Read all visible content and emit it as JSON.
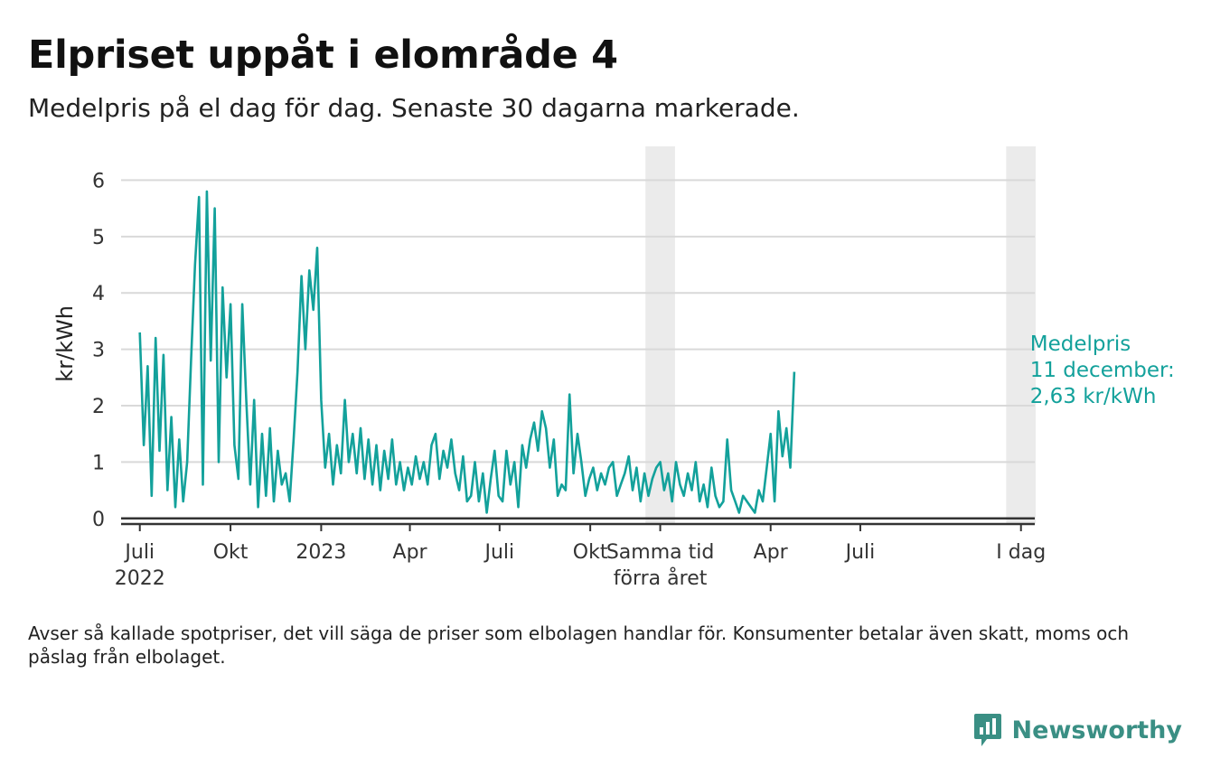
{
  "title": "Elpriset uppåt i elområde 4",
  "subtitle": "Medelpris på el dag för dag.  Senaste 30 dagarna markerade.",
  "footnote": "Avser så kallade spotpriser, det vill säga de priser som elbolagen handlar för. Konsumenter betalar även skatt, moms och påslag från elbolaget.",
  "brand": {
    "name": "Newsworthy",
    "icon": "bar-chart-speech-bubble-icon",
    "color": "#3a8f84"
  },
  "colors": {
    "line": "#13a19b",
    "highlight": "#ebebeb",
    "grid": "#d9d9d9",
    "axis": "#333333",
    "annotation": "#13a19b"
  },
  "chart_data": {
    "type": "line",
    "title": "Elpriset uppåt i elområde 4",
    "ylabel": "kr/kWh",
    "xlabel": "",
    "xlim": [
      "2022-06-12",
      "2024-12-25"
    ],
    "ylim": [
      -0.1,
      6.6
    ],
    "yticks": [
      0,
      1,
      2,
      3,
      4,
      5,
      6
    ],
    "xticks": [
      {
        "date": "2022-07-01",
        "label": [
          "Juli",
          "2022"
        ]
      },
      {
        "date": "2022-10-01",
        "label": [
          "Okt"
        ]
      },
      {
        "date": "2023-01-01",
        "label": [
          "2023"
        ]
      },
      {
        "date": "2023-04-01",
        "label": [
          "Apr"
        ]
      },
      {
        "date": "2023-07-01",
        "label": [
          "Juli"
        ]
      },
      {
        "date": "2023-10-01",
        "label": [
          "Okt"
        ]
      },
      {
        "date": "2023-12-11",
        "label": [
          "Samma tid",
          "förra året"
        ]
      },
      {
        "date": "2024-04-01",
        "label": [
          "Apr"
        ]
      },
      {
        "date": "2024-07-01",
        "label": [
          "Juli"
        ]
      },
      {
        "date": "2024-12-11",
        "label": [
          "I dag"
        ]
      }
    ],
    "highlight_periods": [
      {
        "start": "2023-11-26",
        "end": "2023-12-26",
        "label": "Samma tid förra året"
      },
      {
        "start": "2024-11-26",
        "end": "2024-12-26",
        "label": "I dag"
      }
    ],
    "grid": true,
    "zero_line": true,
    "annotation": {
      "date": "2024-12-11",
      "value": 2.63,
      "lines": [
        "Medelpris",
        "11 december:",
        "2,63 kr/kWh"
      ]
    },
    "series": [
      {
        "name": "",
        "start_date": "2022-07-01",
        "interval_days": 4,
        "values": [
          3.3,
          1.3,
          2.7,
          0.4,
          3.2,
          1.2,
          2.9,
          0.5,
          1.8,
          0.2,
          1.4,
          0.3,
          1.0,
          2.8,
          4.5,
          5.7,
          0.6,
          5.8,
          2.8,
          5.5,
          1.0,
          4.1,
          2.5,
          3.8,
          1.3,
          0.7,
          3.8,
          2.1,
          0.6,
          2.1,
          0.2,
          1.5,
          0.4,
          1.6,
          0.3,
          1.2,
          0.6,
          0.8,
          0.3,
          1.4,
          2.6,
          4.3,
          3.0,
          4.4,
          3.7,
          4.8,
          2.1,
          0.9,
          1.5,
          0.6,
          1.3,
          0.8,
          2.1,
          1.0,
          1.5,
          0.8,
          1.6,
          0.7,
          1.4,
          0.6,
          1.3,
          0.5,
          1.2,
          0.7,
          1.4,
          0.6,
          1.0,
          0.5,
          0.9,
          0.6,
          1.1,
          0.7,
          1.0,
          0.6,
          1.3,
          1.5,
          0.7,
          1.2,
          0.9,
          1.4,
          0.8,
          0.5,
          1.1,
          0.3,
          0.4,
          1.0,
          0.3,
          0.8,
          0.1,
          0.7,
          1.2,
          0.4,
          0.3,
          1.2,
          0.6,
          1.0,
          0.2,
          1.3,
          0.9,
          1.4,
          1.7,
          1.2,
          1.9,
          1.6,
          0.9,
          1.4,
          0.4,
          0.6,
          0.5,
          2.2,
          0.8,
          1.5,
          1.0,
          0.4,
          0.7,
          0.9,
          0.5,
          0.8,
          0.6,
          0.9,
          1.0,
          0.4,
          0.6,
          0.8,
          1.1,
          0.5,
          0.9,
          0.3,
          0.8,
          0.4,
          0.7,
          0.9,
          1.0,
          0.5,
          0.8,
          0.3,
          1.0,
          0.6,
          0.4,
          0.8,
          0.5,
          1.0,
          0.3,
          0.6,
          0.2,
          0.9,
          0.4,
          0.2,
          0.3,
          1.4,
          0.5,
          0.3,
          0.1,
          0.4,
          0.3,
          0.2,
          0.1,
          0.5,
          0.3,
          0.9,
          1.5,
          0.3,
          1.9,
          1.1,
          1.6,
          0.9,
          2.6
        ],
        "highlight_segments": [
          {
            "start": "2023-11-26",
            "end": "2023-12-26"
          },
          {
            "start": "2024-11-26",
            "end": "2024-12-26"
          }
        ]
      }
    ]
  }
}
